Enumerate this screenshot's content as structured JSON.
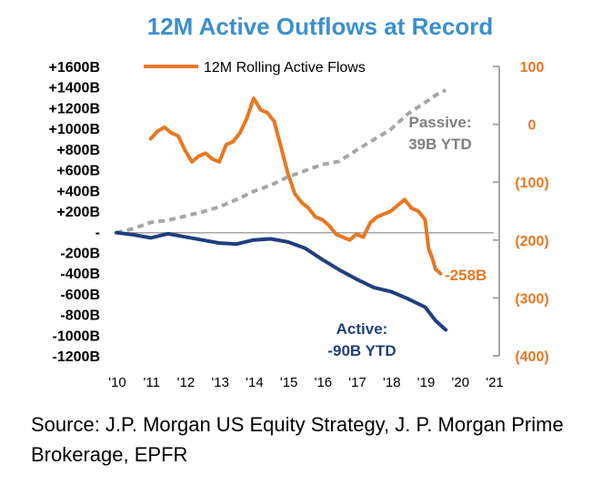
{
  "colors": {
    "title": "#3b8fd0",
    "rolling": "#e87722",
    "passive": "#a6a6a6",
    "active": "#1f3f7f",
    "axis": "#a6a6a6",
    "text": "#000000"
  },
  "chart_data": {
    "type": "line",
    "title": "12M Active Outflows at Record",
    "x_ticks": [
      "'10",
      "'11",
      "'12",
      "'13",
      "'14",
      "'15",
      "'16",
      "'17",
      "'18",
      "'19",
      "'20",
      "'21"
    ],
    "xlim": [
      2010,
      2021
    ],
    "left_axis": {
      "ticks": [
        {
          "v": 1600,
          "label": "+1600B"
        },
        {
          "v": 1400,
          "label": "+1400B"
        },
        {
          "v": 1200,
          "label": "+1200B"
        },
        {
          "v": 1000,
          "label": "+1000B"
        },
        {
          "v": 800,
          "label": "+800B"
        },
        {
          "v": 600,
          "label": "+600B"
        },
        {
          "v": 400,
          "label": "+400B"
        },
        {
          "v": 200,
          "label": "+200B"
        },
        {
          "v": 0,
          "label": "-"
        },
        {
          "v": -200,
          "label": "-200B"
        },
        {
          "v": -400,
          "label": "-400B"
        },
        {
          "v": -600,
          "label": "-600B"
        },
        {
          "v": -800,
          "label": "-800B"
        },
        {
          "v": -1000,
          "label": "-1000B"
        },
        {
          "v": -1200,
          "label": "-1200B"
        }
      ],
      "ylim": [
        -1200,
        1600
      ]
    },
    "right_axis": {
      "ticks": [
        {
          "v": 100,
          "label": "100"
        },
        {
          "v": 0,
          "label": "0"
        },
        {
          "v": -100,
          "label": "(100)"
        },
        {
          "v": -200,
          "label": "(200)"
        },
        {
          "v": -300,
          "label": "(300)"
        },
        {
          "v": -400,
          "label": "(400)"
        }
      ],
      "ylim": [
        -400,
        100
      ]
    },
    "legend": {
      "label": "12M Rolling Active Flows",
      "placement": "top-center"
    },
    "series": [
      {
        "name": "12M Rolling Active Flows",
        "axis": "right",
        "style": "solid",
        "x": [
          2011.0,
          2011.2,
          2011.4,
          2011.6,
          2011.8,
          2012.0,
          2012.2,
          2012.4,
          2012.6,
          2012.8,
          2013.0,
          2013.2,
          2013.4,
          2013.6,
          2013.8,
          2014.0,
          2014.2,
          2014.4,
          2014.6,
          2014.8,
          2015.0,
          2015.2,
          2015.4,
          2015.6,
          2015.8,
          2016.0,
          2016.2,
          2016.4,
          2016.6,
          2016.8,
          2017.0,
          2017.2,
          2017.4,
          2017.6,
          2017.8,
          2018.0,
          2018.2,
          2018.4,
          2018.6,
          2018.8,
          2019.0,
          2019.1,
          2019.2,
          2019.3,
          2019.45
        ],
        "y": [
          -25,
          -12,
          -5,
          -15,
          -20,
          -45,
          -65,
          -55,
          -50,
          -60,
          -65,
          -35,
          -30,
          -15,
          10,
          45,
          25,
          20,
          5,
          -40,
          -85,
          -120,
          -135,
          -145,
          -160,
          -165,
          -175,
          -190,
          -195,
          -200,
          -190,
          -195,
          -170,
          -160,
          -155,
          -150,
          -140,
          -130,
          -145,
          -150,
          -165,
          -215,
          -230,
          -250,
          -258
        ]
      },
      {
        "name": "Passive",
        "axis": "left",
        "style": "dashed",
        "x": [
          2010.0,
          2010.5,
          2011.0,
          2011.5,
          2012.0,
          2012.5,
          2013.0,
          2013.5,
          2014.0,
          2014.5,
          2015.0,
          2015.5,
          2016.0,
          2016.5,
          2017.0,
          2017.5,
          2018.0,
          2018.5,
          2019.0,
          2019.3,
          2019.6
        ],
        "y": [
          0,
          40,
          100,
          120,
          160,
          200,
          250,
          320,
          400,
          460,
          540,
          600,
          660,
          690,
          800,
          900,
          1000,
          1150,
          1260,
          1330,
          1380
        ]
      },
      {
        "name": "Active",
        "axis": "left",
        "style": "solid",
        "x": [
          2010.0,
          2010.5,
          2011.0,
          2011.5,
          2012.0,
          2012.5,
          2013.0,
          2013.5,
          2014.0,
          2014.5,
          2015.0,
          2015.5,
          2016.0,
          2016.5,
          2017.0,
          2017.5,
          2018.0,
          2018.5,
          2019.0,
          2019.3,
          2019.6
        ],
        "y": [
          0,
          -20,
          -50,
          -10,
          -40,
          -70,
          -100,
          -110,
          -70,
          -60,
          -90,
          -150,
          -260,
          -360,
          -450,
          -530,
          -570,
          -640,
          -720,
          -850,
          -940
        ]
      }
    ],
    "annotations": {
      "passive_line1": "Passive:",
      "passive_line2": "39B YTD",
      "active_line1": "Active:",
      "active_line2": "-90B YTD",
      "rolling_value": "-258B"
    }
  },
  "footer": {
    "source": "Source: J.P. Morgan US Equity Strategy, J. P. Morgan Prime Brokerage, EPFR"
  }
}
